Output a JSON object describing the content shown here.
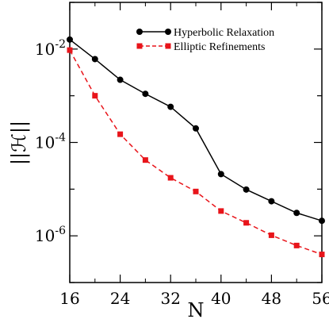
{
  "chart_data": {
    "type": "line",
    "xlabel": "N",
    "ylabel": "||ℋ||",
    "x_ticks": [
      "16",
      "24",
      "32",
      "40",
      "48",
      "56"
    ],
    "y_ticks": [
      {
        "base": "10",
        "exp": "-2",
        "value": 0.01
      },
      {
        "base": "10",
        "exp": "-4",
        "value": 0.0001
      },
      {
        "base": "10",
        "exp": "-6",
        "value": 1e-06
      }
    ],
    "xlim": [
      16,
      56
    ],
    "ylim": [
      1e-07,
      0.1
    ],
    "yscale": "log",
    "legend_position": "top-right",
    "x": [
      16,
      20,
      24,
      28,
      32,
      36,
      40,
      44,
      48,
      52,
      56
    ],
    "series": [
      {
        "name": "Hyperbolic Relaxation",
        "color": "#000000",
        "marker": "circle",
        "line": "solid",
        "values": [
          0.016,
          0.0061,
          0.0022,
          0.0011,
          0.00058,
          0.0002,
          2.1e-05,
          9.8e-06,
          5.5e-06,
          3.1e-06,
          2.1e-06
        ]
      },
      {
        "name": "Elliptic Refinements",
        "color": "#e8141a",
        "marker": "square",
        "line": "dashed",
        "values": [
          0.0095,
          0.001,
          0.00015,
          4.2e-05,
          1.75e-05,
          8.9e-06,
          3.4e-06,
          1.9e-06,
          1.03e-06,
          6.2e-07,
          4e-07
        ]
      }
    ]
  }
}
